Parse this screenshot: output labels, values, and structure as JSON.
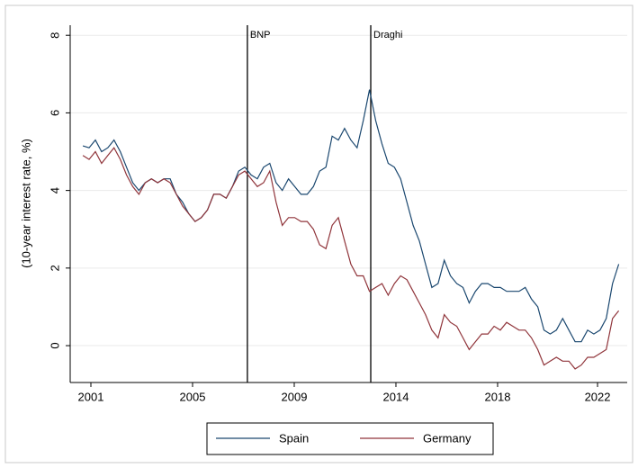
{
  "chart_data": {
    "type": "line",
    "y_label": "(10-year interest rate, %)",
    "x": [
      2001.0,
      2001.25,
      2001.5,
      2001.75,
      2002.0,
      2002.25,
      2002.5,
      2002.75,
      2003.0,
      2003.25,
      2003.5,
      2003.75,
      2004.0,
      2004.25,
      2004.5,
      2004.75,
      2005.0,
      2005.25,
      2005.5,
      2005.75,
      2006.0,
      2006.25,
      2006.5,
      2006.75,
      2007.0,
      2007.25,
      2007.5,
      2007.75,
      2008.0,
      2008.25,
      2008.5,
      2008.75,
      2009.0,
      2009.25,
      2009.5,
      2009.75,
      2010.0,
      2010.25,
      2010.5,
      2010.75,
      2011.0,
      2011.25,
      2011.5,
      2011.75,
      2012.0,
      2012.25,
      2012.5,
      2012.75,
      2013.0,
      2013.25,
      2013.5,
      2013.75,
      2014.0,
      2014.25,
      2014.5,
      2014.75,
      2015.0,
      2015.25,
      2015.5,
      2015.75,
      2016.0,
      2016.25,
      2016.5,
      2016.75,
      2017.0,
      2017.25,
      2017.5,
      2017.75,
      2018.0,
      2018.25,
      2018.5,
      2018.75,
      2019.0,
      2019.25,
      2019.5,
      2019.75,
      2020.0,
      2020.25,
      2020.5,
      2020.75,
      2021.0,
      2021.25,
      2021.5,
      2021.75,
      2022.0,
      2022.25,
      2022.5
    ],
    "series": [
      {
        "name": "Spain",
        "color": "#1a476f",
        "values": [
          5.15,
          5.1,
          5.3,
          5.0,
          5.1,
          5.3,
          5.0,
          4.6,
          4.2,
          4.0,
          4.2,
          4.3,
          4.2,
          4.3,
          4.3,
          3.9,
          3.7,
          3.4,
          3.2,
          3.3,
          3.5,
          3.9,
          3.9,
          3.8,
          4.1,
          4.5,
          4.6,
          4.4,
          4.3,
          4.6,
          4.7,
          4.2,
          4.0,
          4.3,
          4.1,
          3.9,
          3.9,
          4.1,
          4.5,
          4.6,
          5.4,
          5.3,
          5.6,
          5.3,
          5.1,
          5.8,
          6.6,
          5.8,
          5.2,
          4.7,
          4.6,
          4.3,
          3.7,
          3.1,
          2.7,
          2.1,
          1.5,
          1.6,
          2.2,
          1.8,
          1.6,
          1.5,
          1.1,
          1.4,
          1.6,
          1.6,
          1.5,
          1.5,
          1.4,
          1.4,
          1.4,
          1.5,
          1.2,
          1.0,
          0.4,
          0.3,
          0.4,
          0.7,
          0.4,
          0.1,
          0.1,
          0.4,
          0.3,
          0.4,
          0.7,
          1.6,
          2.1
        ]
      },
      {
        "name": "Germany",
        "color": "#90353b",
        "values": [
          4.9,
          4.8,
          5.0,
          4.7,
          4.9,
          5.1,
          4.8,
          4.4,
          4.1,
          3.9,
          4.2,
          4.3,
          4.2,
          4.3,
          4.2,
          3.9,
          3.6,
          3.4,
          3.2,
          3.3,
          3.5,
          3.9,
          3.9,
          3.8,
          4.1,
          4.4,
          4.5,
          4.3,
          4.1,
          4.2,
          4.5,
          3.7,
          3.1,
          3.3,
          3.3,
          3.2,
          3.2,
          3.0,
          2.6,
          2.5,
          3.1,
          3.3,
          2.7,
          2.1,
          1.8,
          1.8,
          1.4,
          1.5,
          1.6,
          1.3,
          1.6,
          1.8,
          1.7,
          1.4,
          1.1,
          0.8,
          0.4,
          0.2,
          0.8,
          0.6,
          0.5,
          0.2,
          -0.1,
          0.1,
          0.3,
          0.3,
          0.5,
          0.4,
          0.6,
          0.5,
          0.4,
          0.4,
          0.2,
          -0.1,
          -0.5,
          -0.4,
          -0.3,
          -0.4,
          -0.4,
          -0.6,
          -0.5,
          -0.3,
          -0.3,
          -0.2,
          -0.1,
          0.7,
          0.9
        ]
      }
    ],
    "events": [
      {
        "label": "BNP",
        "x": 2007.6
      },
      {
        "label": "Draghi",
        "x": 2012.55
      }
    ],
    "xlim": [
      2000.49,
      2022.84
    ],
    "xticks": [
      {
        "value": 2001.32,
        "label": "2001"
      },
      {
        "value": 2005.4,
        "label": "2005"
      },
      {
        "value": 2009.48,
        "label": "2009"
      },
      {
        "value": 2013.56,
        "label": "2014"
      },
      {
        "value": 2017.64,
        "label": "2018"
      },
      {
        "value": 2021.65,
        "label": "2022"
      }
    ],
    "ylim": [
      -0.95,
      8.26
    ],
    "yticks": [
      0,
      2,
      4,
      6,
      8
    ],
    "grid": true,
    "legend": "bottom"
  }
}
